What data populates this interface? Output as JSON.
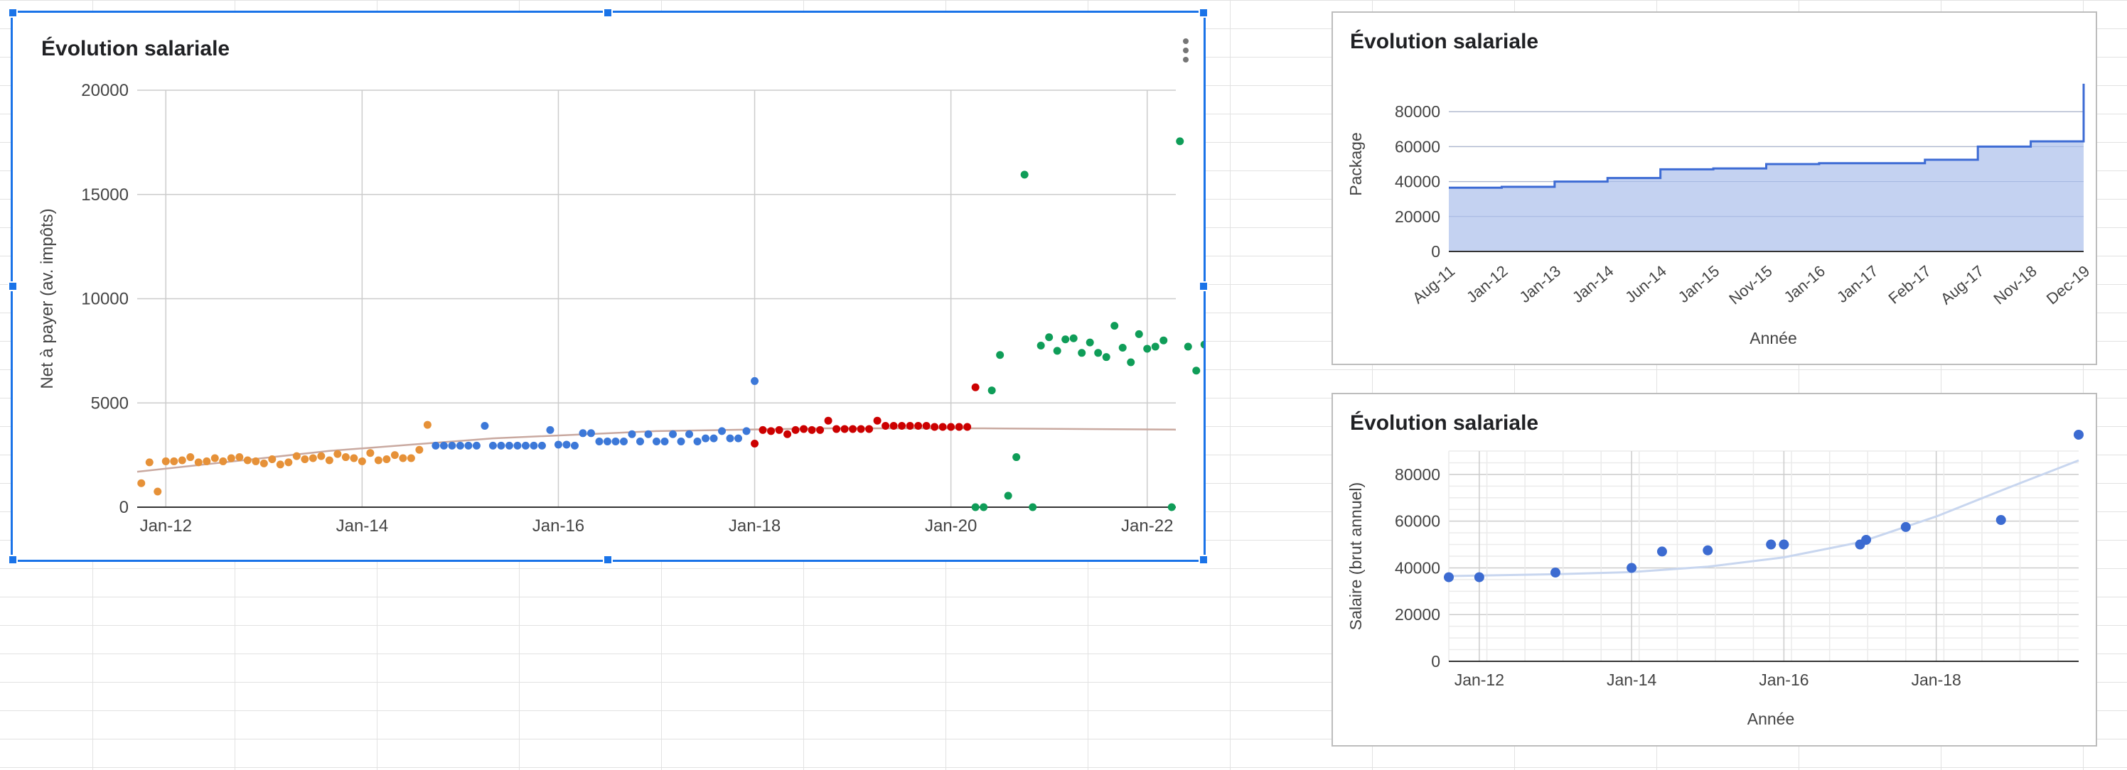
{
  "charts": {
    "main": {
      "title": "Évolution salariale"
    },
    "package": {
      "title": "Évolution salariale"
    },
    "salary": {
      "title": "Évolution salariale"
    }
  },
  "chart_data": [
    {
      "type": "scatter",
      "title": "Évolution salariale",
      "xlabel": "",
      "ylabel": "Net à payer (av. impôts)",
      "ylim": [
        0,
        20000
      ],
      "yticks": [
        0,
        5000,
        10000,
        15000,
        20000
      ],
      "xticks": [
        "Jan-12",
        "Jan-14",
        "Jan-16",
        "Jan-18",
        "Jan-20",
        "Jan-22"
      ],
      "x_unit": "months since Jan-12",
      "xlim": [
        -3.5,
        123.5
      ],
      "grid": true,
      "legend": "none",
      "trendline": {
        "type": "polynomial",
        "color": "#c9a9a0",
        "points": [
          [
            -3.5,
            1700
          ],
          [
            20,
            2700
          ],
          [
            40,
            3300
          ],
          [
            60,
            3650
          ],
          [
            80,
            3780
          ],
          [
            100,
            3780
          ],
          [
            123.5,
            3720
          ]
        ]
      },
      "series": [
        {
          "color": "#e69138",
          "points": [
            [
              -3,
              1150
            ],
            [
              -2,
              2150
            ],
            [
              -1,
              750
            ],
            [
              0,
              2200
            ],
            [
              1,
              2200
            ],
            [
              2,
              2250
            ],
            [
              3,
              2400
            ],
            [
              4,
              2150
            ],
            [
              5,
              2200
            ],
            [
              6,
              2350
            ],
            [
              7,
              2200
            ],
            [
              8,
              2350
            ],
            [
              9,
              2400
            ],
            [
              10,
              2250
            ],
            [
              11,
              2200
            ],
            [
              12,
              2100
            ],
            [
              13,
              2300
            ],
            [
              14,
              2050
            ],
            [
              15,
              2150
            ],
            [
              16,
              2450
            ],
            [
              17,
              2300
            ],
            [
              18,
              2350
            ],
            [
              19,
              2450
            ],
            [
              20,
              2250
            ],
            [
              21,
              2550
            ],
            [
              22,
              2400
            ],
            [
              23,
              2350
            ],
            [
              24,
              2200
            ],
            [
              25,
              2600
            ],
            [
              26,
              2250
            ],
            [
              27,
              2300
            ],
            [
              28,
              2500
            ],
            [
              29,
              2350
            ],
            [
              30,
              2350
            ],
            [
              31,
              2750
            ],
            [
              32,
              3950
            ]
          ]
        },
        {
          "color": "#3c78d8",
          "points": [
            [
              33,
              2950
            ],
            [
              34,
              2950
            ],
            [
              35,
              2950
            ],
            [
              36,
              2950
            ],
            [
              37,
              2950
            ],
            [
              38,
              2950
            ],
            [
              39,
              3900
            ],
            [
              40,
              2950
            ],
            [
              41,
              2950
            ],
            [
              42,
              2950
            ],
            [
              43,
              2950
            ],
            [
              44,
              2950
            ],
            [
              45,
              2950
            ],
            [
              46,
              2950
            ],
            [
              47,
              3700
            ],
            [
              48,
              3000
            ],
            [
              49,
              3000
            ],
            [
              50,
              2950
            ],
            [
              51,
              3550
            ],
            [
              52,
              3550
            ],
            [
              53,
              3150
            ],
            [
              54,
              3150
            ],
            [
              55,
              3150
            ],
            [
              56,
              3150
            ],
            [
              57,
              3500
            ],
            [
              58,
              3150
            ],
            [
              59,
              3500
            ],
            [
              60,
              3150
            ],
            [
              61,
              3150
            ],
            [
              62,
              3500
            ],
            [
              63,
              3150
            ],
            [
              64,
              3500
            ],
            [
              65,
              3150
            ],
            [
              66,
              3300
            ],
            [
              67,
              3300
            ],
            [
              68,
              3650
            ],
            [
              69,
              3300
            ],
            [
              70,
              3300
            ],
            [
              71,
              3650
            ],
            [
              72,
              6050
            ]
          ]
        },
        {
          "color": "#cc0000",
          "points": [
            [
              72,
              3050
            ],
            [
              73,
              3700
            ],
            [
              74,
              3650
            ],
            [
              75,
              3700
            ],
            [
              76,
              3500
            ],
            [
              77,
              3700
            ],
            [
              78,
              3750
            ],
            [
              79,
              3700
            ],
            [
              80,
              3700
            ],
            [
              81,
              4150
            ],
            [
              82,
              3750
            ],
            [
              83,
              3750
            ],
            [
              84,
              3750
            ],
            [
              85,
              3750
            ],
            [
              86,
              3750
            ],
            [
              87,
              4150
            ],
            [
              88,
              3900
            ],
            [
              89,
              3900
            ],
            [
              90,
              3900
            ],
            [
              91,
              3900
            ],
            [
              92,
              3900
            ],
            [
              93,
              3900
            ],
            [
              94,
              3850
            ],
            [
              95,
              3850
            ],
            [
              96,
              3850
            ],
            [
              97,
              3850
            ],
            [
              98,
              3850
            ],
            [
              99,
              5750
            ]
          ]
        },
        {
          "color": "#0f9d58",
          "points": [
            [
              99,
              0
            ],
            [
              100,
              0
            ],
            [
              101,
              5600
            ],
            [
              102,
              7300
            ],
            [
              103,
              550
            ],
            [
              104,
              2400
            ],
            [
              105,
              15950
            ],
            [
              106,
              0
            ],
            [
              107,
              7750
            ],
            [
              108,
              8150
            ],
            [
              109,
              7500
            ],
            [
              110,
              8050
            ],
            [
              111,
              8100
            ],
            [
              112,
              7400
            ],
            [
              113,
              7900
            ],
            [
              114,
              7400
            ],
            [
              115,
              7200
            ],
            [
              116,
              8700
            ],
            [
              117,
              7650
            ],
            [
              118,
              6950
            ],
            [
              119,
              8300
            ],
            [
              120,
              7600
            ],
            [
              121,
              7700
            ],
            [
              122,
              8000
            ],
            [
              123,
              0
            ],
            [
              124,
              17550
            ],
            [
              125,
              7700
            ],
            [
              126,
              6550
            ],
            [
              127,
              7800
            ]
          ]
        }
      ]
    },
    {
      "type": "area",
      "title": "Évolution salariale",
      "xlabel": "Année",
      "ylabel": "Package",
      "ylim": [
        0,
        100000
      ],
      "yticks": [
        0,
        20000,
        40000,
        60000,
        80000
      ],
      "categories": [
        "Aug-11",
        "Jan-12",
        "Jan-13",
        "Jan-14",
        "Jun-14",
        "Jan-15",
        "Nov-15",
        "Jan-16",
        "Jan-17",
        "Feb-17",
        "Aug-17",
        "Nov-18",
        "Dec-19"
      ],
      "values": [
        36500,
        37000,
        40000,
        42000,
        47000,
        47500,
        50000,
        50500,
        50500,
        52500,
        60000,
        63000,
        96000
      ],
      "color": "#3d6bd4",
      "fill": "#c4d2f1",
      "grid": true,
      "legend": "none"
    },
    {
      "type": "scatter",
      "title": "Évolution salariale",
      "xlabel": "Année",
      "ylabel": "Salaire (brut annuel)",
      "ylim": [
        0,
        90000
      ],
      "yticks": [
        0,
        20000,
        40000,
        60000,
        80000
      ],
      "xticks": [
        "Jan-12",
        "Jan-14",
        "Jan-16",
        "Jan-18"
      ],
      "x_unit": "years since 2012",
      "xlim": [
        -0.4,
        7.87
      ],
      "grid": true,
      "legend": "none",
      "color": "#3c6bd1",
      "trendline": {
        "type": "exponential",
        "color": "#c8d6ef",
        "points": [
          [
            -0.4,
            36500
          ],
          [
            1,
            37300
          ],
          [
            2,
            38200
          ],
          [
            3,
            40500
          ],
          [
            4,
            44500
          ],
          [
            5,
            51000
          ],
          [
            6,
            62000
          ],
          [
            7,
            75000
          ],
          [
            7.87,
            86000
          ]
        ]
      },
      "points": [
        [
          -0.4,
          36000
        ],
        [
          0,
          36000
        ],
        [
          1,
          38000
        ],
        [
          2,
          40000
        ],
        [
          2.4,
          47000
        ],
        [
          3,
          47500
        ],
        [
          3.83,
          50000
        ],
        [
          4,
          50000
        ],
        [
          5,
          50000
        ],
        [
          5.08,
          52000
        ],
        [
          5.6,
          57500
        ],
        [
          6.85,
          60500
        ],
        [
          7.87,
          97000
        ]
      ]
    }
  ]
}
